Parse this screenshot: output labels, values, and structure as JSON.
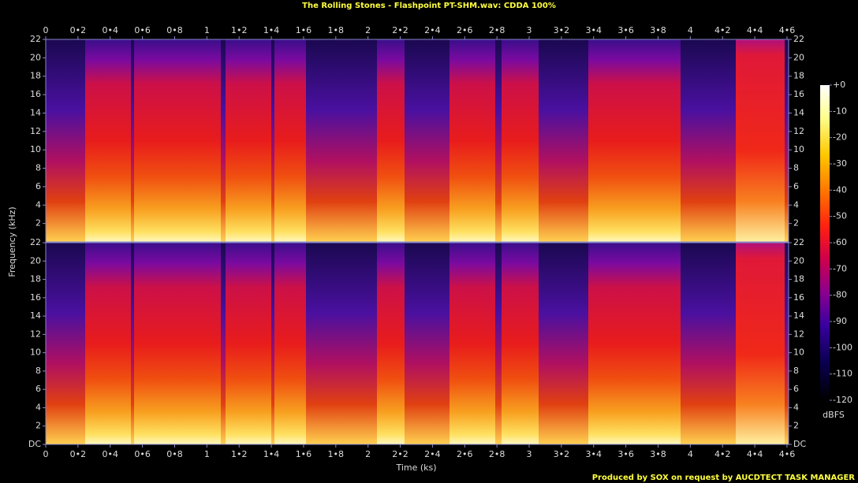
{
  "title": "The Rolling Stones - Flashpoint PT-SHM.wav: CDDA 100%",
  "x_label": "Time (ks)",
  "y_label": "Frequency (kHz)",
  "footer": "Produced by SOX on request by AUCDTECT TASK MANAGER",
  "chart_data": [
    {
      "type": "spectrogram",
      "xlim": [
        0,
        4.61
      ],
      "ylim": [
        0,
        22
      ],
      "xticks": [
        0,
        {
          "value": 0.2,
          "label": "0•2"
        },
        {
          "value": 0.4,
          "label": "0•4"
        },
        {
          "value": 0.6,
          "label": "0•6"
        },
        {
          "value": 0.8,
          "label": "0•8"
        },
        1,
        {
          "value": 1.2,
          "label": "1•2"
        },
        {
          "value": 1.4,
          "label": "1•4"
        },
        {
          "value": 1.6,
          "label": "1•6"
        },
        {
          "value": 1.8,
          "label": "1•8"
        },
        2,
        {
          "value": 2.2,
          "label": "2•2"
        },
        {
          "value": 2.4,
          "label": "2•4"
        },
        {
          "value": 2.6,
          "label": "2•6"
        },
        {
          "value": 2.8,
          "label": "2•8"
        },
        3,
        {
          "value": 3.2,
          "label": "3•2"
        },
        {
          "value": 3.4,
          "label": "3•4"
        },
        {
          "value": 3.6,
          "label": "3•6"
        },
        {
          "value": 3.8,
          "label": "3•8"
        },
        4,
        {
          "value": 4.2,
          "label": "4•2"
        },
        {
          "value": 4.4,
          "label": "4•4"
        },
        {
          "value": 4.6,
          "label": "4•6"
        }
      ],
      "yticks": [
        2,
        4,
        6,
        8,
        10,
        12,
        14,
        16,
        18,
        20,
        22
      ]
    },
    {
      "type": "spectrogram",
      "xlim": [
        0,
        4.61
      ],
      "ylim": [
        0,
        22
      ],
      "xticks": [
        0,
        {
          "value": 0.2,
          "label": "0•2"
        },
        {
          "value": 0.4,
          "label": "0•4"
        },
        {
          "value": 0.6,
          "label": "0•6"
        },
        {
          "value": 0.8,
          "label": "0•8"
        },
        1,
        {
          "value": 1.2,
          "label": "1•2"
        },
        {
          "value": 1.4,
          "label": "1•4"
        },
        {
          "value": 1.6,
          "label": "1•6"
        },
        {
          "value": 1.8,
          "label": "1•8"
        },
        2,
        {
          "value": 2.2,
          "label": "2•2"
        },
        {
          "value": 2.4,
          "label": "2•4"
        },
        {
          "value": 2.6,
          "label": "2•6"
        },
        {
          "value": 2.8,
          "label": "2•8"
        },
        3,
        {
          "value": 3.2,
          "label": "3•2"
        },
        {
          "value": 3.4,
          "label": "3•4"
        },
        {
          "value": 3.6,
          "label": "3•6"
        },
        {
          "value": 3.8,
          "label": "3•8"
        },
        4,
        {
          "value": 4.2,
          "label": "4•2"
        },
        {
          "value": 4.4,
          "label": "4•4"
        },
        {
          "value": 4.6,
          "label": "4•6"
        }
      ],
      "yticks": [
        {
          "value": 0,
          "label": "DC"
        },
        2,
        4,
        6,
        8,
        10,
        12,
        14,
        16,
        18,
        20,
        22
      ]
    },
    {
      "type": "colorbar",
      "unit": "dBFS",
      "ylim": [
        -120,
        0
      ],
      "yticks": [
        {
          "value": 0,
          "label": "+0"
        },
        -10,
        -20,
        -30,
        -40,
        -50,
        -60,
        -70,
        -80,
        -90,
        -100,
        -110,
        -120
      ]
    }
  ]
}
